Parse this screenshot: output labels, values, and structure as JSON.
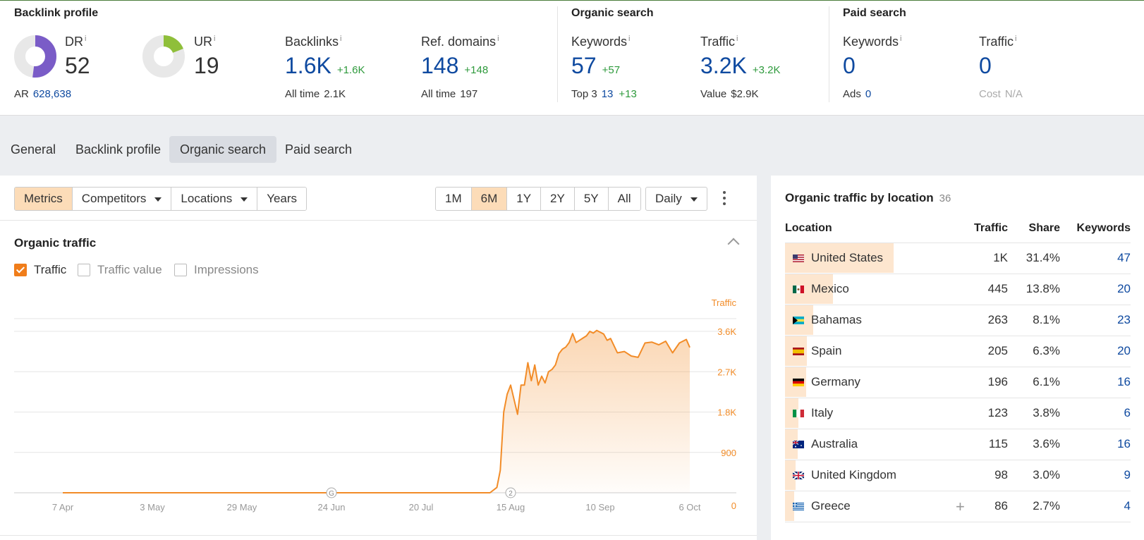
{
  "metrics": {
    "backlink_profile": {
      "title": "Backlink profile",
      "dr": {
        "label": "DR",
        "value": "52",
        "donut_fraction": 0.52,
        "color": "#7a5cc7"
      },
      "ur": {
        "label": "UR",
        "value": "19",
        "donut_fraction": 0.19,
        "color": "#8fbf3a"
      },
      "ar_label": "AR",
      "ar_value": "628,638",
      "backlinks": {
        "label": "Backlinks",
        "value": "1.6K",
        "delta": "+1.6K",
        "sub_label": "All time",
        "sub_value": "2.1K"
      },
      "ref_domains": {
        "label": "Ref. domains",
        "value": "148",
        "delta": "+148",
        "sub_label": "All time",
        "sub_value": "197"
      }
    },
    "organic_search": {
      "title": "Organic search",
      "keywords": {
        "label": "Keywords",
        "value": "57",
        "delta": "+57",
        "sub_label": "Top 3",
        "sub_value": "13",
        "sub_delta": "+13"
      },
      "traffic": {
        "label": "Traffic",
        "value": "3.2K",
        "delta": "+3.2K",
        "sub_label": "Value",
        "sub_value": "$2.9K"
      }
    },
    "paid_search": {
      "title": "Paid search",
      "keywords": {
        "label": "Keywords",
        "value": "0",
        "sub_label": "Ads",
        "sub_value": "0"
      },
      "traffic": {
        "label": "Traffic",
        "value": "0",
        "sub_label": "Cost",
        "sub_value": "N/A"
      }
    },
    "info_glyph": "i"
  },
  "tabs": [
    "General",
    "Backlink profile",
    "Organic search",
    "Paid search"
  ],
  "active_tab": "Organic search",
  "toolbar": {
    "views": [
      "Metrics",
      "Competitors",
      "Locations",
      "Years"
    ],
    "ranges": [
      "1M",
      "6M",
      "1Y",
      "2Y",
      "5Y",
      "All"
    ],
    "granularity": "Daily"
  },
  "chart": {
    "title": "Organic traffic",
    "checkboxes": [
      {
        "label": "Traffic",
        "checked": true
      },
      {
        "label": "Traffic value",
        "checked": false
      },
      {
        "label": "Impressions",
        "checked": false
      }
    ]
  },
  "chart_data": {
    "type": "area",
    "series": [
      {
        "name": "Traffic",
        "color": "#f28c28"
      }
    ],
    "y_axis_title": "Traffic",
    "y_ticks": [
      "0",
      "900",
      "1.8K",
      "2.7K",
      "3.6K"
    ],
    "ylim": [
      0,
      3600
    ],
    "x_ticks": [
      "7 Apr",
      "3 May",
      "29 May",
      "24 Jun",
      "20 Jul",
      "15 Aug",
      "10 Sep",
      "6 Oct"
    ],
    "annotations": [
      {
        "x": "24 Jun",
        "label": "G"
      },
      {
        "x": "15 Aug",
        "label": "2"
      }
    ],
    "x": [
      "7 Apr",
      "3 May",
      "29 May",
      "24 Jun",
      "20 Jul",
      "9 Aug",
      "11 Aug",
      "12 Aug",
      "13 Aug",
      "14 Aug",
      "15 Aug",
      "17 Aug",
      "18 Aug",
      "19 Aug",
      "20 Aug",
      "21 Aug",
      "22 Aug",
      "23 Aug",
      "24 Aug",
      "25 Aug",
      "26 Aug",
      "27 Aug",
      "28 Aug",
      "29 Aug",
      "30 Aug",
      "31 Aug",
      "1 Sep",
      "2 Sep",
      "3 Sep",
      "4 Sep",
      "5 Sep",
      "6 Sep",
      "7 Sep",
      "8 Sep",
      "9 Sep",
      "10 Sep",
      "11 Sep",
      "12 Sep",
      "13 Sep",
      "15 Sep",
      "17 Sep",
      "19 Sep",
      "21 Sep",
      "23 Sep",
      "25 Sep",
      "27 Sep",
      "29 Sep",
      "1 Oct",
      "3 Oct",
      "5 Oct",
      "6 Oct"
    ],
    "values": [
      0,
      0,
      0,
      0,
      0,
      0,
      120,
      500,
      1800,
      2200,
      2400,
      1750,
      2400,
      2400,
      2900,
      2500,
      2850,
      2400,
      2600,
      2450,
      2700,
      2750,
      2850,
      3100,
      3200,
      3250,
      3350,
      3550,
      3350,
      3400,
      3450,
      3500,
      3600,
      3560,
      3620,
      3580,
      3540,
      3400,
      3440,
      3120,
      3150,
      3050,
      3020,
      3340,
      3360,
      3300,
      3380,
      3120,
      3340,
      3420,
      3240
    ]
  },
  "location_panel": {
    "title": "Organic traffic by location",
    "count": "36",
    "headers": {
      "location": "Location",
      "traffic": "Traffic",
      "share": "Share",
      "keywords": "Keywords"
    },
    "rows": [
      {
        "country": "United States",
        "flag": "us",
        "traffic": "1K",
        "share": "31.4%",
        "keywords": "47",
        "share_fraction": 0.314
      },
      {
        "country": "Mexico",
        "flag": "mx",
        "traffic": "445",
        "share": "13.8%",
        "keywords": "20",
        "share_fraction": 0.138
      },
      {
        "country": "Bahamas",
        "flag": "bs",
        "traffic": "263",
        "share": "8.1%",
        "keywords": "23",
        "share_fraction": 0.081
      },
      {
        "country": "Spain",
        "flag": "es",
        "traffic": "205",
        "share": "6.3%",
        "keywords": "20",
        "share_fraction": 0.063
      },
      {
        "country": "Germany",
        "flag": "de",
        "traffic": "196",
        "share": "6.1%",
        "keywords": "16",
        "share_fraction": 0.061
      },
      {
        "country": "Italy",
        "flag": "it",
        "traffic": "123",
        "share": "3.8%",
        "keywords": "6",
        "share_fraction": 0.038
      },
      {
        "country": "Australia",
        "flag": "au",
        "traffic": "115",
        "share": "3.6%",
        "keywords": "16",
        "share_fraction": 0.036
      },
      {
        "country": "United Kingdom",
        "flag": "gb",
        "traffic": "98",
        "share": "3.0%",
        "keywords": "9",
        "share_fraction": 0.03
      },
      {
        "country": "Greece",
        "flag": "gr",
        "traffic": "86",
        "share": "2.7%",
        "keywords": "4",
        "share_fraction": 0.027,
        "show_plus": true
      }
    ]
  },
  "colors": {
    "accent_orange": "#f28c28",
    "link_blue": "#0f4aa0",
    "delta_green": "#2e9a3c",
    "active_button": "#fcdcb8"
  }
}
